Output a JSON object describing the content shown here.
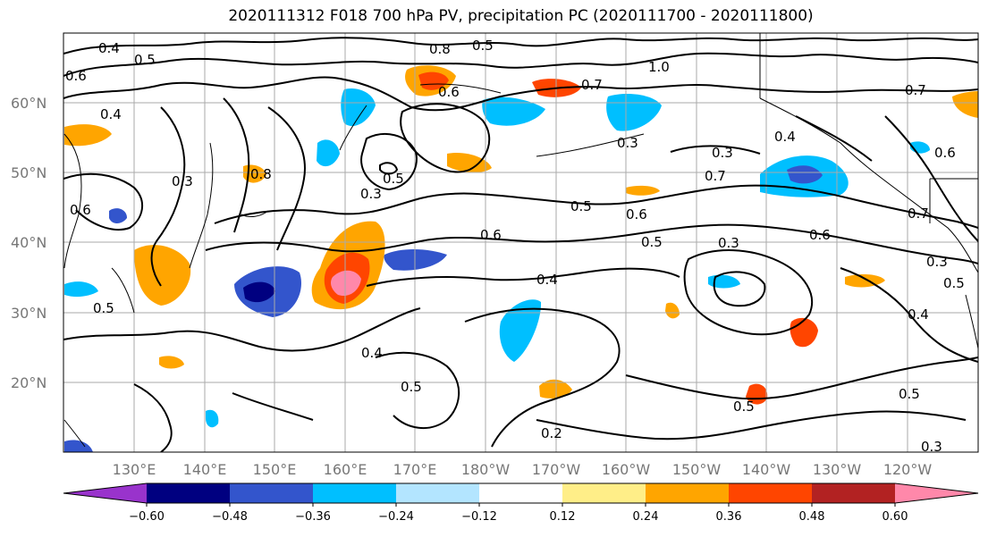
{
  "title": "2020111312 F018 700 hPa PV, precipitation PC (2020111700 - 2020111800)",
  "map": {
    "lon_labels": [
      "130°E",
      "140°E",
      "150°E",
      "160°E",
      "170°E",
      "180°W",
      "170°W",
      "160°W",
      "150°W",
      "140°W",
      "130°W",
      "120°W"
    ],
    "lat_labels": [
      "60°N",
      "50°N",
      "40°N",
      "30°N",
      "20°N"
    ],
    "contour_labels": [
      "0.4",
      "0.5",
      "0.6",
      "0.8",
      "0.6",
      "0.5",
      "0.7",
      "1.0",
      "0.7",
      "0.6",
      "0.3",
      "0.5",
      "0.3",
      "0.8",
      "0.3",
      "0.7",
      "0.4",
      "0.3",
      "0.7",
      "0.5",
      "0.6",
      "0.6",
      "0.4",
      "0.5",
      "0.3",
      "0.6",
      "0.4",
      "0.5",
      "0.3",
      "0.5",
      "0.4",
      "0.5",
      "0.2",
      "0.5",
      "0.3",
      "0.5",
      "0.4",
      "0.6"
    ]
  },
  "colorbar": {
    "colors": [
      "#9933cc",
      "#000080",
      "#3355cc",
      "#00bfff",
      "#b3e5ff",
      "#ffffff",
      "#ffee88",
      "#ffa500",
      "#ff4500",
      "#b22222",
      "#ff88aa"
    ],
    "tick_labels": [
      "−0.60",
      "−0.48",
      "−0.36",
      "−0.24",
      "−0.12",
      "0.12",
      "0.24",
      "0.36",
      "0.48",
      "0.60"
    ]
  }
}
